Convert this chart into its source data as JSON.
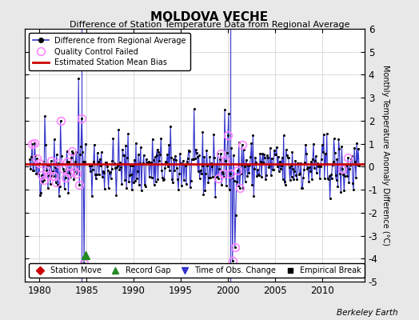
{
  "title": "MOLDOVA VECHE",
  "subtitle": "Difference of Station Temperature Data from Regional Average",
  "ylabel_right": "Monthly Temperature Anomaly Difference (°C)",
  "background_color": "#e8e8e8",
  "plot_bg_color": "#ffffff",
  "xlim": [
    1978.5,
    2014.5
  ],
  "ylim": [
    -5,
    6
  ],
  "yticks": [
    -5,
    -4,
    -3,
    -2,
    -1,
    0,
    1,
    2,
    3,
    4,
    5,
    6
  ],
  "xticks": [
    1980,
    1985,
    1990,
    1995,
    2000,
    2005,
    2010
  ],
  "mean_bias": 0.1,
  "mean_bias_color": "#cc0000",
  "line_color": "#3333cc",
  "dot_color": "#000000",
  "qc_fail_color": "#ff88ff",
  "berkeley_earth_text": "Berkeley Earth",
  "record_gap_x": 1984.92,
  "record_gap_y": -3.85,
  "time_obs_changes": [
    1984.5,
    2000.25
  ],
  "years_start": 1979,
  "years_end": 2013,
  "gap_start_year": 1985.0,
  "gap_end_year": 1985.4,
  "seed": 42
}
